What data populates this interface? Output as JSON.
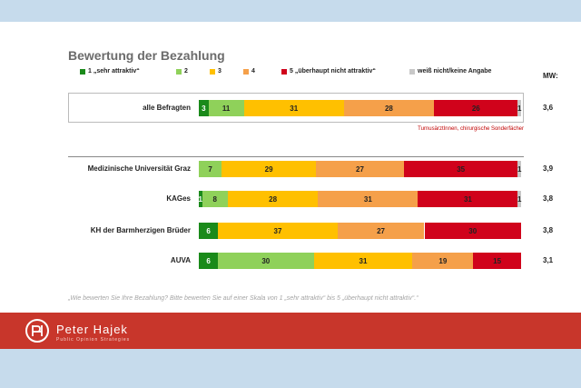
{
  "title": "Bewertung der Bezahlung",
  "mw_label": "MW:",
  "legend": [
    {
      "label": "1 „sehr attraktiv“",
      "color": "#1a8a1a"
    },
    {
      "label": "2",
      "color": "#8fd15a"
    },
    {
      "label": "3",
      "color": "#ffc000"
    },
    {
      "label": "4",
      "color": "#f5a04a"
    },
    {
      "label": "5 „überhaupt nicht attraktiv“",
      "color": "#d0021b"
    },
    {
      "label": "weiß nicht/keine Angabe",
      "color": "#c8c8c8"
    }
  ],
  "note": "TurnusärztInnen, chirurgische Sonderfächer",
  "question": "„Wie bewerten Sie Ihre Bezahlung? Bitte bewerten Sie auf einer Skala von 1 „sehr attraktiv“ bis 5 „überhaupt nicht attraktiv“.“",
  "footer": {
    "name": "Peter Hajek",
    "sub": "Public Opinion Strategies"
  },
  "chart_data": {
    "type": "bar",
    "stacked": true,
    "orientation": "horizontal",
    "unit": "%",
    "categories": [
      "alle Befragten",
      "Medizinische Universität Graz",
      "KAGes",
      "KH der Barmherzigen Brüder",
      "AUVA"
    ],
    "series": [
      {
        "name": "1 „sehr attraktiv“",
        "values": [
          3,
          0,
          1,
          6,
          6
        ]
      },
      {
        "name": "2",
        "values": [
          11,
          7,
          8,
          0,
          30
        ]
      },
      {
        "name": "3",
        "values": [
          31,
          29,
          28,
          37,
          31
        ]
      },
      {
        "name": "4",
        "values": [
          28,
          27,
          31,
          27,
          19
        ]
      },
      {
        "name": "5 „überhaupt nicht attraktiv“",
        "values": [
          26,
          35,
          31,
          30,
          15
        ]
      },
      {
        "name": "weiß nicht/keine Angabe",
        "values": [
          1,
          1,
          1,
          0,
          0
        ]
      }
    ],
    "mw": [
      "3,6",
      "3,9",
      "3,8",
      "3,8",
      "3,1"
    ],
    "xlim": [
      0,
      100
    ]
  }
}
